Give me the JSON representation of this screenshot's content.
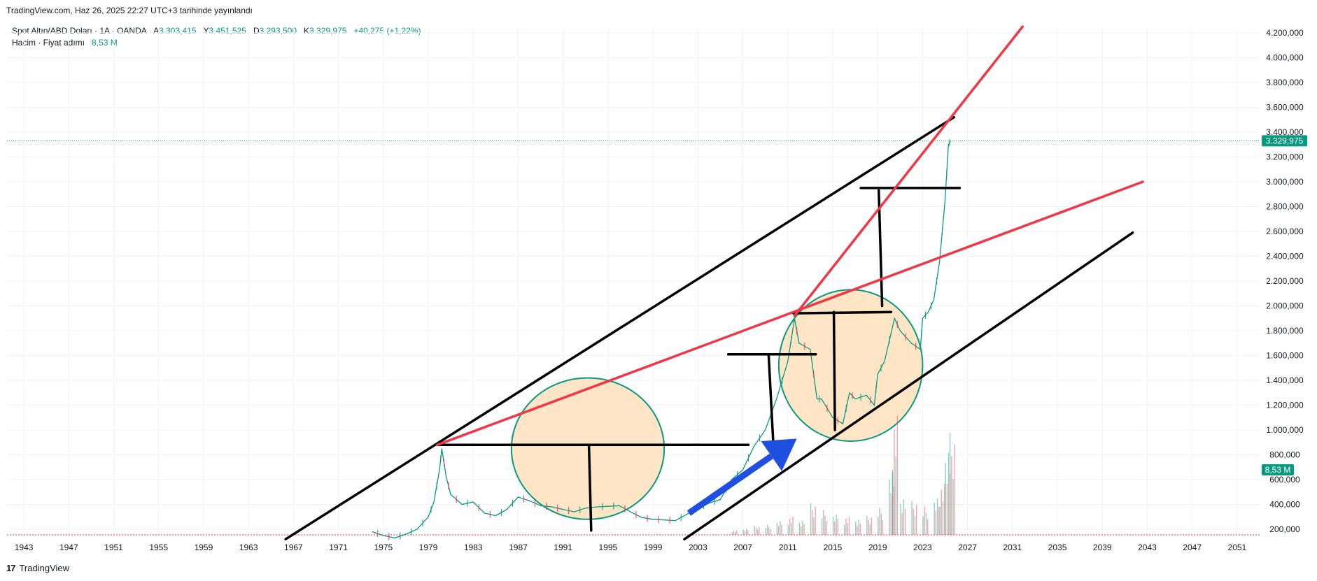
{
  "header": {
    "published": "TradingView.com, Haz 26, 2025 22:27 UTC+3 tarihinde yayınlandı"
  },
  "legend": {
    "symbol": "Spot Altın/ABD Doları · 1A · OANDA",
    "open_label": "A",
    "open": "3.303,415",
    "high_label": "Y",
    "high": "3.451,525",
    "low_label": "D",
    "low": "3.293,500",
    "close_label": "K",
    "close": "3.329,975",
    "change": "+40,275 (+1,22%)",
    "volume_label": "Hacim · Fiyat adımı",
    "volume_value": "8,53 M"
  },
  "footer": {
    "brand": "TradingView"
  },
  "colors": {
    "up": "#089981",
    "down": "#f23645",
    "trend_black": "#000000",
    "trend_red": "#f23645",
    "circle_fill": "#fde5c5",
    "circle_stroke": "#089981",
    "arrow": "#1f4fe0",
    "price_badge": "#089981"
  },
  "chart_data": {
    "type": "line",
    "title": "Spot Altın/ABD Doları · 1A · OANDA",
    "x_ticks": [
      "1943",
      "1947",
      "1951",
      "1955",
      "1959",
      "1963",
      "1967",
      "1971",
      "1975",
      "1979",
      "1983",
      "1987",
      "1991",
      "1995",
      "1999",
      "2003",
      "2007",
      "2011",
      "2015",
      "2019",
      "2023",
      "2027",
      "2031",
      "2035",
      "2039",
      "2043",
      "2047",
      "2051"
    ],
    "y_ticks": [
      "200,000",
      "400,000",
      "600,000",
      "800,000",
      "1.000,000",
      "1.200,000",
      "1.400,000",
      "1.600,000",
      "1.800,000",
      "2.000,000",
      "2.200,000",
      "2.400,000",
      "2.600,000",
      "2.800,000",
      "3.000,000",
      "3.200,000",
      "3.400,000",
      "3.600,000",
      "3.800,000",
      "4.000,000",
      "4.200,000"
    ],
    "ylim": [
      120,
      4280
    ],
    "xlim": [
      1941.5,
      2053
    ],
    "current_price_label": "3.329,975",
    "current_price": 3329.975,
    "volume_badge": "8,53 M",
    "series": [
      {
        "kind": "price",
        "x": [
          1974,
          1975,
          1976,
          1977,
          1978,
          1979,
          1979.5,
          1980,
          1980.2,
          1980.6,
          1981,
          1982,
          1983,
          1984,
          1985,
          1986,
          1987,
          1988,
          1989,
          1990,
          1991,
          1992,
          1993,
          1994,
          1995,
          1996,
          1997,
          1998,
          1999,
          2000,
          2001,
          2002,
          2003,
          2004,
          2005,
          2006,
          2007,
          2008,
          2009,
          2010,
          2011,
          2011.6,
          2012,
          2013,
          2013.6,
          2014,
          2015,
          2015.9,
          2016.5,
          2017,
          2018,
          2018.7,
          2019,
          2019.6,
          2020.5,
          2021,
          2022,
          2022.8,
          2023,
          2023.5,
          2024,
          2024.5,
          2025,
          2025.3,
          2025.5
        ],
        "y": [
          180,
          150,
          130,
          160,
          200,
          300,
          420,
          680,
          850,
          620,
          480,
          400,
          420,
          330,
          310,
          360,
          460,
          430,
          390,
          380,
          360,
          340,
          370,
          380,
          385,
          390,
          340,
          295,
          280,
          275,
          270,
          320,
          370,
          410,
          440,
          600,
          680,
          870,
          1000,
          1250,
          1550,
          1900,
          1700,
          1650,
          1250,
          1250,
          1100,
          1050,
          1300,
          1250,
          1280,
          1200,
          1450,
          1550,
          1900,
          1800,
          1700,
          1650,
          1900,
          1950,
          2050,
          2350,
          2850,
          3300,
          3330
        ]
      }
    ],
    "volume": {
      "x": [
        2006,
        2007,
        2008,
        2009,
        2010,
        2011,
        2012,
        2013,
        2014,
        2015,
        2016,
        2017,
        2018,
        2019,
        2020,
        2020.3,
        2021,
        2022,
        2023,
        2024,
        2024.5,
        2025,
        2025.4
      ],
      "values": [
        0.4,
        0.6,
        0.8,
        0.9,
        1.2,
        1.6,
        1.4,
        2.8,
        2.2,
        1.8,
        1.6,
        1.5,
        1.7,
        2.4,
        5.5,
        10.5,
        3.5,
        3.0,
        2.5,
        3.2,
        4.5,
        8.2,
        9.0
      ]
    },
    "annotations": {
      "black_lines": [
        {
          "x1": 1966.3,
          "y1": 120,
          "x2": 2025.8,
          "y2": 3520
        },
        {
          "x1": 2001.8,
          "y1": 120,
          "x2": 2041.7,
          "y2": 2590
        },
        {
          "x1": 1979.8,
          "y1": 880,
          "x2": 2007.5,
          "y2": 880
        },
        {
          "x1": 2005.7,
          "y1": 1610,
          "x2": 2013.5,
          "y2": 1610
        },
        {
          "x1": 2011.5,
          "y1": 1940,
          "x2": 2020.2,
          "y2": 1950
        },
        {
          "x1": 2017.5,
          "y1": 2950,
          "x2": 2026.3,
          "y2": 2950
        },
        {
          "x1": 1993.3,
          "y1": 880,
          "x2": 1993.5,
          "y2": 190
        },
        {
          "x1": 2009.3,
          "y1": 1600,
          "x2": 2009.7,
          "y2": 910
        },
        {
          "x1": 2015.1,
          "y1": 1950,
          "x2": 2015.2,
          "y2": 1000
        },
        {
          "x1": 2019.1,
          "y1": 2930,
          "x2": 2019.4,
          "y2": 2000
        }
      ],
      "red_lines": [
        {
          "x1": 1979.8,
          "y1": 880,
          "x2": 2042.6,
          "y2": 3000
        },
        {
          "x1": 2011.6,
          "y1": 1920,
          "x2": 2031.9,
          "y2": 4250
        }
      ],
      "circles": [
        {
          "cx": 1993.2,
          "cy": 850,
          "rx": 6.8,
          "ry": 570
        },
        {
          "cx": 2016.6,
          "cy": 1520,
          "rx": 6.4,
          "ry": 610
        }
      ],
      "arrow": {
        "x1": 2002.2,
        "y1": 330,
        "x2": 2011.8,
        "y2": 930
      }
    }
  }
}
